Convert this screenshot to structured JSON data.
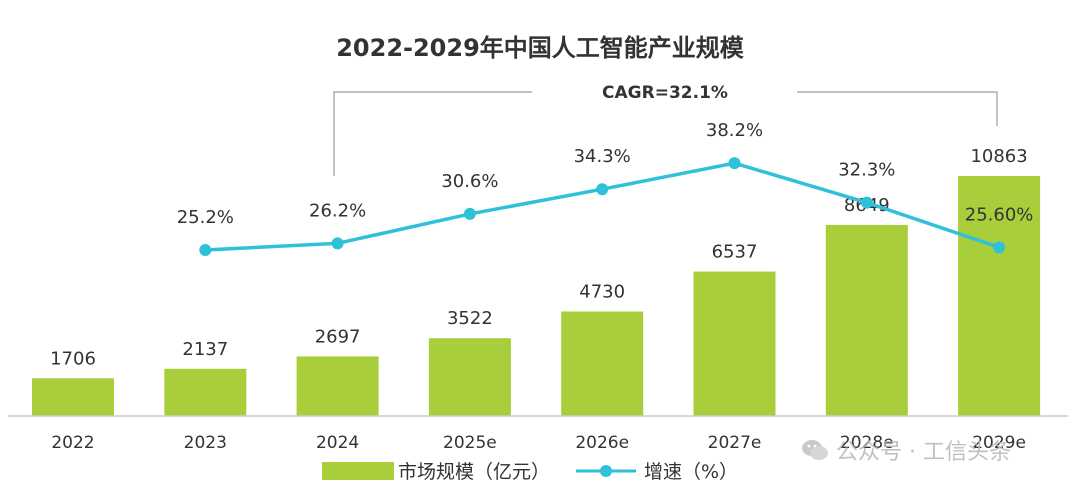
{
  "chart_data": {
    "type": "bar",
    "title": "2022-2029年中国人工智能产业规模",
    "annotation": "CAGR=32.1%",
    "categories": [
      "2022",
      "2023",
      "2024",
      "2025e",
      "2026e",
      "2027e",
      "2028e",
      "2029e"
    ],
    "series": [
      {
        "name": "市场规模（亿元）",
        "type": "bar",
        "color": "#a8cf3b",
        "values": [
          1706,
          2137,
          2697,
          3522,
          4730,
          6537,
          8649,
          10863
        ],
        "labels": [
          "1706",
          "2137",
          "2697",
          "3522",
          "4730",
          "6537",
          "8649",
          "10863"
        ]
      },
      {
        "name": "增速（%）",
        "type": "line",
        "color": "#2ec1d8",
        "values": [
          null,
          25.2,
          26.2,
          30.6,
          34.3,
          38.2,
          32.3,
          25.6
        ],
        "labels": [
          "",
          "25.2%",
          "26.2%",
          "30.6%",
          "34.3%",
          "38.2%",
          "32.3%",
          "25.60%"
        ]
      }
    ],
    "legend_position": "bottom"
  },
  "watermark": {
    "text": "公众号 · 工信头条",
    "icon": "wechat-icon"
  }
}
